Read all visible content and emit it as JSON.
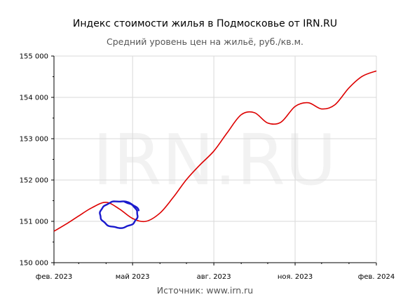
{
  "title": "Индекс стоимости жилья в Подмосковье от IRN.RU",
  "subtitle": "Средний уровень цен на жильё, руб./кв.м.",
  "source": "Источник: www.irn.ru",
  "watermark": "IRN.RU",
  "colors": {
    "line": "#dd0000",
    "annotation": "#1a1acc",
    "grid": "#d9d9d9",
    "axis": "#000000"
  },
  "chart_data": {
    "type": "line",
    "title": "Индекс стоимости жилья в Подмосковье от IRN.RU",
    "subtitle": "Средний уровень цен на жильё, руб./кв.м.",
    "x_ticks": [
      "фев. 2023",
      "май 2023",
      "авг. 2023",
      "ноя. 2023",
      "фев. 2024"
    ],
    "y_ticks": [
      "150 000",
      "151 000",
      "152 000",
      "153 000",
      "154 000",
      "155 000"
    ],
    "ylim": [
      150000,
      155000
    ],
    "xlim": [
      "2023-02-01",
      "2024-02-01"
    ],
    "grid": true,
    "series": [
      {
        "points": [
          [
            "2023-02-01",
            150760
          ],
          [
            "2023-02-16",
            150950
          ],
          [
            "2023-03-01",
            151130
          ],
          [
            "2023-03-16",
            151330
          ],
          [
            "2023-04-01",
            151460
          ],
          [
            "2023-04-16",
            151300
          ],
          [
            "2023-05-01",
            151070
          ],
          [
            "2023-05-16",
            151000
          ],
          [
            "2023-06-01",
            151200
          ],
          [
            "2023-06-16",
            151580
          ],
          [
            "2023-07-01",
            152010
          ],
          [
            "2023-07-16",
            152360
          ],
          [
            "2023-08-01",
            152700
          ],
          [
            "2023-08-16",
            153140
          ],
          [
            "2023-09-01",
            153580
          ],
          [
            "2023-09-16",
            153630
          ],
          [
            "2023-10-01",
            153380
          ],
          [
            "2023-10-16",
            153400
          ],
          [
            "2023-11-01",
            153780
          ],
          [
            "2023-11-16",
            153870
          ],
          [
            "2023-12-01",
            153720
          ],
          [
            "2023-12-16",
            153820
          ],
          [
            "2024-01-01",
            154230
          ],
          [
            "2024-01-16",
            154510
          ],
          [
            "2024-02-01",
            154640
          ]
        ]
      }
    ],
    "annotations": [
      {
        "type": "hand-drawn-circle",
        "center": [
          "2023-04-16",
          151200
        ],
        "description": ""
      }
    ]
  }
}
